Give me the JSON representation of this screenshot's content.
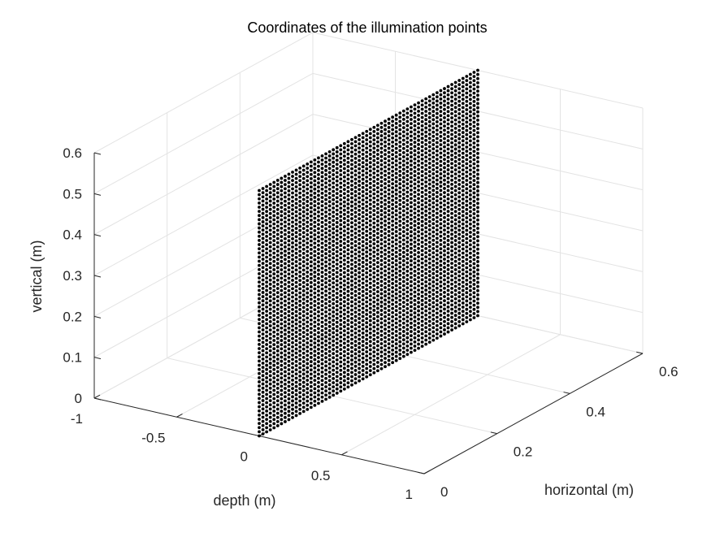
{
  "chart_data": {
    "type": "scatter",
    "projection": "3d",
    "title": "Coordinates of the illumination points",
    "xlabel": "depth (m)",
    "ylabel": "horizontal (m)",
    "zlabel": "vertical (m)",
    "xlim": [
      -1,
      1
    ],
    "ylim": [
      0,
      0.6
    ],
    "zlim": [
      0,
      0.6
    ],
    "xticks": [
      -1,
      -0.5,
      0,
      0.5,
      1
    ],
    "xtick_labels": [
      "-1",
      "-0.5",
      "0",
      "0.5",
      "1"
    ],
    "yticks": [
      0,
      0.2,
      0.4,
      0.6
    ],
    "ytick_labels": [
      "0",
      "0.2",
      "0.4",
      "0.6"
    ],
    "zticks": [
      0,
      0.1,
      0.2,
      0.3,
      0.4,
      0.5,
      0.6
    ],
    "ztick_labels": [
      "0",
      "0.1",
      "0.2",
      "0.3",
      "0.4",
      "0.5",
      "0.6"
    ],
    "grid": true,
    "marker_color": "#000000",
    "points_description": {
      "x": 0,
      "y_range": [
        0,
        0.6
      ],
      "z_range": [
        0,
        0.6
      ],
      "rows": 60,
      "cols": 60
    }
  },
  "colors": {
    "axis": "#262626",
    "grid": "#e3e3e3",
    "marker": "#000000"
  }
}
